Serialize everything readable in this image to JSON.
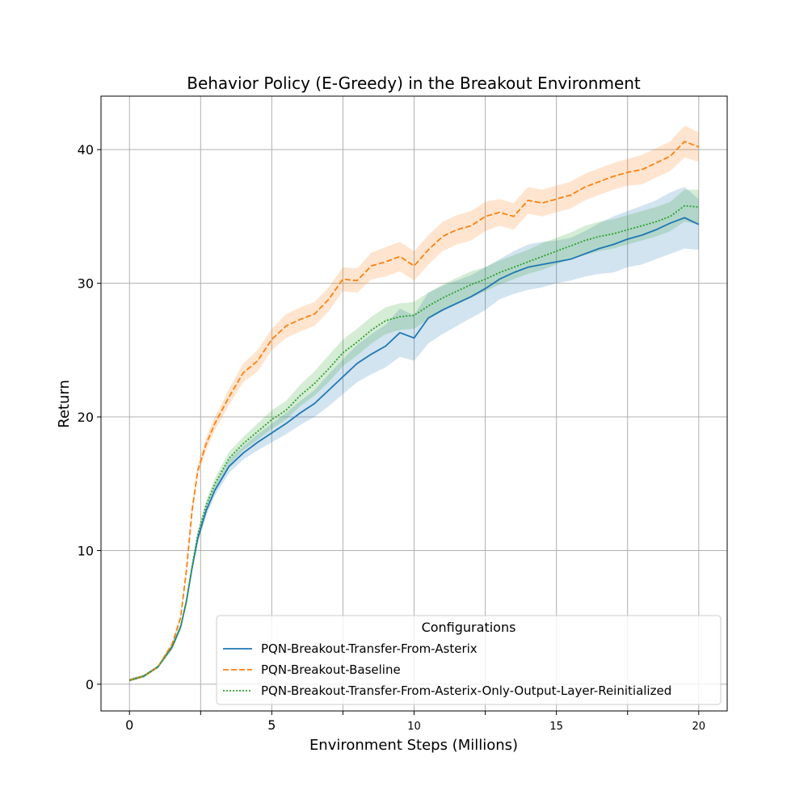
{
  "chart_data": {
    "type": "line",
    "title": "Behavior Policy (E-Greedy) in the Breakout Environment",
    "xlabel": "Environment Steps (Millions)",
    "ylabel": "Return",
    "xlim": [
      -1,
      21
    ],
    "ylim": [
      -2,
      44
    ],
    "xticks": [
      {
        "value": 0,
        "label": "0",
        "size": "large"
      },
      {
        "value": 2.5,
        "label": "",
        "size": "large"
      },
      {
        "value": 5,
        "label": "5",
        "size": "large"
      },
      {
        "value": 7.5,
        "label": "",
        "size": "large"
      },
      {
        "value": 10,
        "label": "10",
        "size": "small"
      },
      {
        "value": 12.5,
        "label": "",
        "size": "large"
      },
      {
        "value": 15,
        "label": "15",
        "size": "small"
      },
      {
        "value": 17.5,
        "label": "",
        "size": "large"
      },
      {
        "value": 20,
        "label": "20",
        "size": "small"
      }
    ],
    "yticks": [
      {
        "value": 0,
        "label": "0"
      },
      {
        "value": 10,
        "label": "10"
      },
      {
        "value": 20,
        "label": "20"
      },
      {
        "value": 30,
        "label": "30"
      },
      {
        "value": 40,
        "label": "40"
      }
    ],
    "grid": true,
    "legend": {
      "title": "Configurations",
      "position": "lower-right"
    },
    "series": [
      {
        "name": "PQN-Breakout-Transfer-From-Asterix",
        "color": "#1f77b4",
        "dash": "solid",
        "x": [
          0,
          0.5,
          1,
          1.5,
          1.8,
          2,
          2.2,
          2.4,
          2.7,
          3,
          3.5,
          4,
          4.5,
          5,
          5.5,
          6,
          6.5,
          7,
          7.5,
          8,
          8.5,
          9,
          9.5,
          10,
          10.5,
          11,
          11.5,
          12,
          12.5,
          13,
          13.5,
          14,
          14.5,
          15,
          15.5,
          16,
          16.5,
          17,
          17.5,
          18,
          18.5,
          19,
          19.5,
          20
        ],
        "y": [
          0.3,
          0.6,
          1.3,
          2.8,
          4.3,
          6.2,
          8.7,
          10.9,
          13.0,
          14.5,
          16.3,
          17.3,
          18.1,
          18.8,
          19.5,
          20.3,
          21.0,
          22.0,
          23.0,
          24.0,
          24.7,
          25.3,
          26.3,
          25.9,
          27.4,
          28.0,
          28.5,
          29.0,
          29.6,
          30.3,
          30.8,
          31.2,
          31.4,
          31.6,
          31.8,
          32.2,
          32.6,
          32.9,
          33.3,
          33.6,
          34.0,
          34.5,
          34.9,
          34.4
        ],
        "lower": [
          0.2,
          0.5,
          1.2,
          2.6,
          4.1,
          6.0,
          8.4,
          10.6,
          12.6,
          14.1,
          15.8,
          16.8,
          17.5,
          18.1,
          18.7,
          19.4,
          20.0,
          20.8,
          21.7,
          22.6,
          23.2,
          23.7,
          24.5,
          24.2,
          25.5,
          26.2,
          26.8,
          27.4,
          28.0,
          28.8,
          29.2,
          29.5,
          29.7,
          30.0,
          30.2,
          30.5,
          30.7,
          30.8,
          31.2,
          31.4,
          31.8,
          32.2,
          32.6,
          32.5
        ],
        "upper": [
          0.4,
          0.7,
          1.4,
          3.0,
          4.5,
          6.4,
          9.0,
          11.2,
          13.4,
          14.9,
          16.8,
          17.8,
          18.7,
          19.5,
          20.3,
          21.2,
          22.0,
          23.2,
          24.3,
          25.4,
          26.2,
          26.9,
          28.1,
          27.6,
          29.3,
          29.8,
          30.2,
          30.6,
          31.2,
          31.8,
          32.4,
          32.9,
          33.1,
          33.2,
          33.4,
          33.9,
          34.5,
          35.0,
          35.4,
          35.8,
          36.2,
          36.8,
          37.2,
          36.3
        ]
      },
      {
        "name": "PQN-Breakout-Baseline",
        "color": "#ff7f0e",
        "dash": "dashed",
        "x": [
          0,
          0.5,
          1,
          1.5,
          1.8,
          2,
          2.2,
          2.4,
          2.7,
          3,
          3.5,
          4,
          4.5,
          5,
          5.5,
          6,
          6.5,
          7,
          7.5,
          8,
          8.5,
          9,
          9.5,
          10,
          10.5,
          11,
          11.5,
          12,
          12.5,
          13,
          13.5,
          14,
          14.5,
          15,
          15.5,
          16,
          16.5,
          17,
          17.5,
          18,
          18.5,
          19,
          19.5,
          20
        ],
        "y": [
          0.3,
          0.6,
          1.3,
          3.0,
          5.0,
          8.5,
          13.0,
          16.0,
          18.0,
          19.5,
          21.5,
          23.3,
          24.2,
          25.8,
          26.8,
          27.3,
          27.7,
          28.8,
          30.3,
          30.2,
          31.3,
          31.6,
          32.0,
          31.3,
          32.5,
          33.5,
          34.0,
          34.3,
          35.0,
          35.3,
          35.0,
          36.2,
          36.0,
          36.3,
          36.6,
          37.2,
          37.6,
          38.0,
          38.3,
          38.5,
          39.0,
          39.5,
          40.6,
          40.2
        ],
        "lower": [
          0.2,
          0.5,
          1.2,
          2.8,
          4.8,
          8.2,
          12.6,
          15.6,
          17.5,
          19.0,
          20.9,
          22.6,
          23.4,
          25.0,
          25.9,
          26.4,
          26.8,
          27.9,
          29.4,
          29.3,
          30.3,
          30.5,
          30.9,
          30.2,
          31.4,
          32.4,
          32.9,
          33.2,
          33.9,
          34.3,
          34.0,
          35.2,
          35.0,
          35.3,
          35.6,
          36.2,
          36.6,
          37.0,
          37.3,
          37.4,
          37.9,
          38.4,
          39.4,
          39.1
        ],
        "upper": [
          0.4,
          0.7,
          1.4,
          3.2,
          5.2,
          8.8,
          13.4,
          16.4,
          18.5,
          20.0,
          22.1,
          24.0,
          25.0,
          26.6,
          27.7,
          28.2,
          28.6,
          29.7,
          31.2,
          31.1,
          32.3,
          32.7,
          33.1,
          32.4,
          33.6,
          34.6,
          35.1,
          35.4,
          36.1,
          36.3,
          36.0,
          37.2,
          37.0,
          37.3,
          37.6,
          38.2,
          38.6,
          39.0,
          39.3,
          39.6,
          40.1,
          40.6,
          41.8,
          41.3
        ]
      },
      {
        "name": "PQN-Breakout-Transfer-From-Asterix-Only-Output-Layer-Reinitialized",
        "color": "#2ca02c",
        "dash": "dotted",
        "x": [
          0,
          0.5,
          1,
          1.5,
          1.8,
          2,
          2.2,
          2.4,
          2.7,
          3,
          3.5,
          4,
          4.5,
          5,
          5.5,
          6,
          6.5,
          7,
          7.5,
          8,
          8.5,
          9,
          9.5,
          10,
          10.5,
          11,
          11.5,
          12,
          12.5,
          13,
          13.5,
          14,
          14.5,
          15,
          15.5,
          16,
          16.5,
          17,
          17.5,
          18,
          18.5,
          19,
          19.5,
          20
        ],
        "y": [
          0.3,
          0.6,
          1.3,
          2.8,
          4.3,
          6.2,
          8.8,
          11.2,
          13.4,
          15.0,
          16.9,
          18.0,
          18.9,
          19.8,
          20.5,
          21.6,
          22.5,
          23.6,
          24.8,
          25.6,
          26.5,
          27.2,
          27.5,
          27.6,
          28.3,
          28.9,
          29.4,
          29.9,
          30.3,
          30.8,
          31.2,
          31.6,
          32.0,
          32.4,
          32.8,
          33.2,
          33.5,
          33.7,
          34.0,
          34.3,
          34.6,
          35.0,
          35.8,
          35.7
        ],
        "lower": [
          0.2,
          0.5,
          1.2,
          2.6,
          4.1,
          6.0,
          8.6,
          10.9,
          13.0,
          14.6,
          16.4,
          17.5,
          18.3,
          19.1,
          19.8,
          20.8,
          21.6,
          22.6,
          23.8,
          24.6,
          25.5,
          26.2,
          26.5,
          26.6,
          27.3,
          27.9,
          28.4,
          28.9,
          29.4,
          29.9,
          30.3,
          30.7,
          31.0,
          31.4,
          31.8,
          32.1,
          32.4,
          32.6,
          32.9,
          33.2,
          33.5,
          33.9,
          34.6,
          34.4
        ],
        "upper": [
          0.4,
          0.7,
          1.4,
          3.0,
          4.5,
          6.4,
          9.0,
          11.5,
          13.8,
          15.4,
          17.4,
          18.5,
          19.5,
          20.5,
          21.2,
          22.4,
          23.4,
          24.6,
          25.8,
          26.6,
          27.5,
          28.2,
          28.5,
          28.6,
          29.3,
          29.9,
          30.4,
          30.9,
          31.2,
          31.7,
          32.1,
          32.5,
          33.0,
          33.4,
          33.8,
          34.3,
          34.6,
          34.8,
          35.1,
          35.4,
          35.7,
          36.1,
          37.0,
          37.0
        ]
      }
    ]
  }
}
